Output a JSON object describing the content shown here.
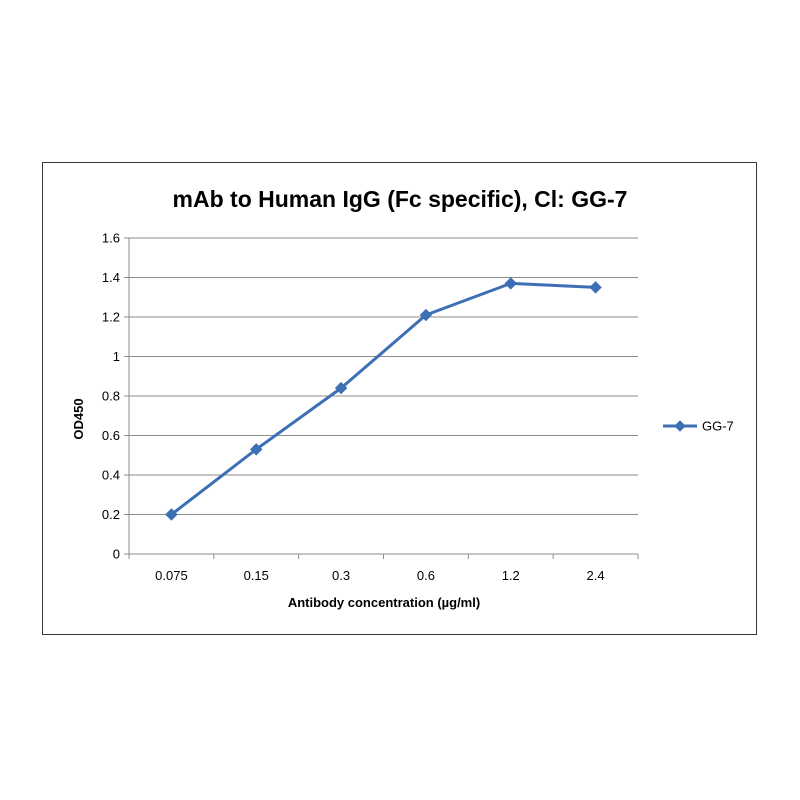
{
  "chart_data": {
    "type": "line",
    "title": "mAb to Human IgG (Fc specific), Cl: GG-7",
    "xlabel": "Antibody concentration (µg/ml)",
    "ylabel": "OD450",
    "categories": [
      "0.075",
      "0.15",
      "0.3",
      "0.6",
      "1.2",
      "2.4"
    ],
    "series": [
      {
        "name": "GG-7",
        "values": [
          0.2,
          0.53,
          0.84,
          1.21,
          1.37,
          1.35
        ],
        "color": "#3d6fb5"
      }
    ],
    "ylim": [
      0,
      1.6
    ],
    "yticks": [
      "0",
      "0.2",
      "0.4",
      "0.6",
      "0.8",
      "1",
      "1.2",
      "1.4",
      "1.6"
    ],
    "grid": true,
    "legend_position": "right",
    "marker": "diamond"
  }
}
